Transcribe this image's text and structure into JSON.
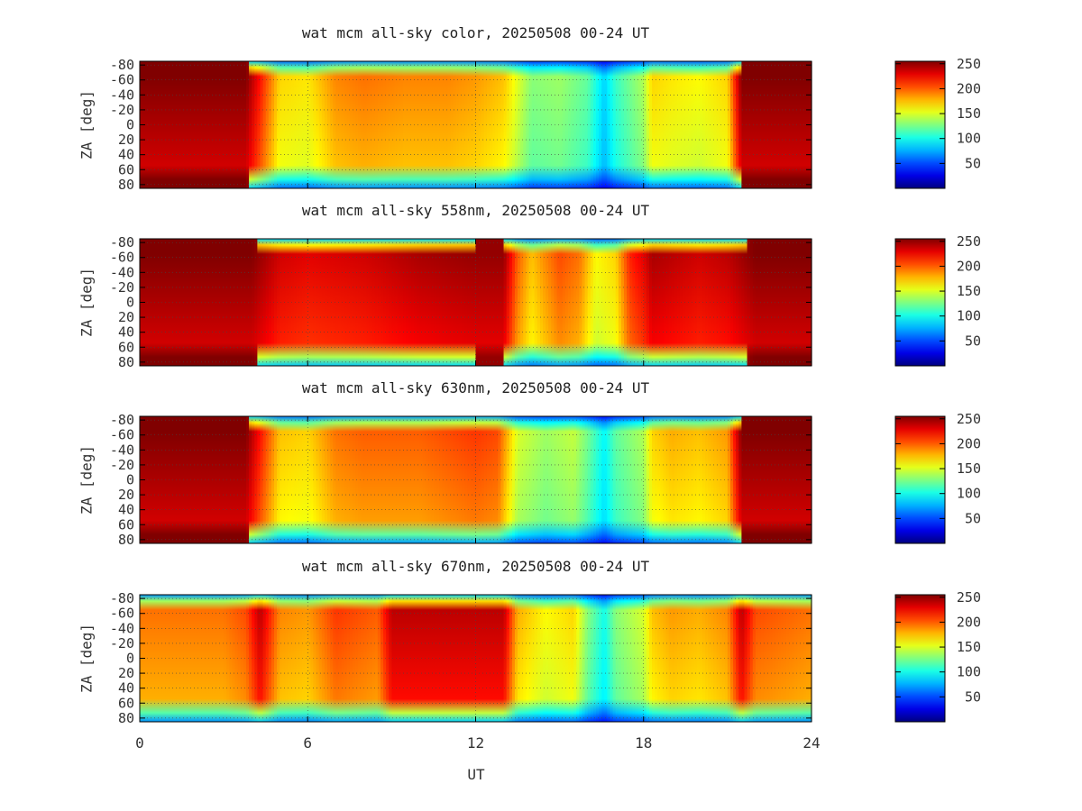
{
  "chart_data": [
    {
      "type": "heatmap",
      "title": "wat mcm all-sky color, 20250508 00-24 UT",
      "ylabel": "ZA [deg]",
      "xlabel": "",
      "x_ticks": [
        "0",
        "6",
        "12",
        "18",
        "24"
      ],
      "xlim": [
        0,
        24
      ],
      "y_ticks": [
        "-80",
        "-60",
        "-40",
        "-20",
        "0",
        "20",
        "40",
        "60",
        "80"
      ],
      "ylim": [
        -85,
        85
      ],
      "colorbar_ticks": [
        "50",
        "100",
        "150",
        "200",
        "250"
      ],
      "colorbar_range": [
        0,
        255
      ],
      "profile_ut": [
        0,
        3,
        3.8,
        4.3,
        5,
        6,
        7,
        8,
        9.5,
        11,
        12,
        13,
        14,
        15,
        16,
        16.6,
        17,
        18,
        18.3,
        19,
        20,
        21,
        21.5,
        22,
        24
      ],
      "profile_value": [
        255,
        255,
        255,
        220,
        170,
        165,
        190,
        195,
        190,
        190,
        185,
        175,
        130,
        135,
        120,
        85,
        110,
        140,
        170,
        165,
        160,
        170,
        255,
        255,
        255
      ]
    },
    {
      "type": "heatmap",
      "title": "wat mcm all-sky 558nm, 20250508 00-24 UT",
      "ylabel": "ZA [deg]",
      "xlabel": "",
      "x_ticks": [
        "0",
        "6",
        "12",
        "18",
        "24"
      ],
      "xlim": [
        0,
        24
      ],
      "y_ticks": [
        "-80",
        "-60",
        "-40",
        "-20",
        "0",
        "20",
        "40",
        "60",
        "80"
      ],
      "ylim": [
        -85,
        85
      ],
      "colorbar_ticks": [
        "50",
        "100",
        "150",
        "200",
        "250"
      ],
      "colorbar_range": [
        0,
        255
      ],
      "profile_ut": [
        0,
        4,
        5,
        6,
        8,
        10,
        12,
        13,
        13.5,
        14,
        15,
        15.7,
        16.3,
        17,
        17.5,
        18,
        18.3,
        20,
        21,
        22,
        24
      ],
      "profile_value": [
        255,
        255,
        235,
        230,
        235,
        245,
        250,
        250,
        200,
        175,
        205,
        195,
        160,
        170,
        215,
        230,
        245,
        235,
        240,
        255,
        255
      ]
    },
    {
      "type": "heatmap",
      "title": "wat mcm all-sky 630nm, 20250508 00-24 UT",
      "ylabel": "ZA [deg]",
      "xlabel": "",
      "x_ticks": [
        "0",
        "6",
        "12",
        "18",
        "24"
      ],
      "xlim": [
        0,
        24
      ],
      "y_ticks": [
        "-80",
        "-60",
        "-40",
        "-20",
        "0",
        "20",
        "40",
        "60",
        "80"
      ],
      "ylim": [
        -85,
        85
      ],
      "colorbar_ticks": [
        "50",
        "100",
        "150",
        "200",
        "250"
      ],
      "colorbar_range": [
        0,
        255
      ],
      "profile_ut": [
        0,
        3,
        3.8,
        4.3,
        5,
        6,
        7,
        8,
        10,
        12,
        12.8,
        13.5,
        14.5,
        15.5,
        16,
        16.6,
        17,
        18,
        18.3,
        19,
        20,
        21,
        21.5,
        22,
        24
      ],
      "profile_value": [
        255,
        255,
        255,
        220,
        175,
        170,
        195,
        200,
        200,
        210,
        205,
        150,
        135,
        145,
        125,
        95,
        120,
        140,
        170,
        180,
        175,
        185,
        255,
        255,
        255
      ]
    },
    {
      "type": "heatmap",
      "title": "wat mcm all-sky 670nm, 20250508 00-24 UT",
      "ylabel": "ZA [deg]",
      "xlabel": "UT",
      "x_ticks": [
        "0",
        "6",
        "12",
        "18",
        "24"
      ],
      "xlim": [
        0,
        24
      ],
      "y_ticks": [
        "-80",
        "-60",
        "-40",
        "-20",
        "0",
        "20",
        "40",
        "60",
        "80"
      ],
      "ylim": [
        -85,
        85
      ],
      "colorbar_ticks": [
        "50",
        "100",
        "150",
        "200",
        "250"
      ],
      "colorbar_range": [
        0,
        255
      ],
      "profile_ut": [
        0,
        3,
        3.8,
        4.3,
        5,
        6,
        7,
        8.5,
        9,
        11,
        13,
        13.5,
        14.5,
        15.5,
        16,
        16.6,
        17,
        18,
        18.3,
        19,
        20,
        21,
        21.5,
        22,
        24
      ],
      "profile_value": [
        195,
        195,
        205,
        240,
        190,
        185,
        210,
        200,
        240,
        240,
        240,
        180,
        160,
        170,
        130,
        100,
        130,
        150,
        175,
        185,
        180,
        190,
        240,
        205,
        195
      ]
    }
  ]
}
